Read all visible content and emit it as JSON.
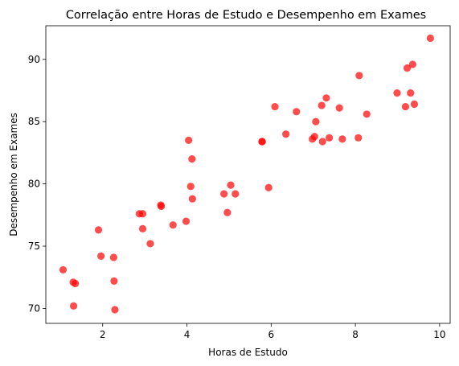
{
  "chart_data": {
    "type": "scatter",
    "title": "Correlação entre Horas de Estudo e Desempenho em Exames",
    "xlabel": "Horas de Estudo",
    "ylabel": "Desempenho em Exames",
    "xlim": [
      0.65,
      10.25
    ],
    "ylim": [
      68.8,
      92.7
    ],
    "xticks": [
      2,
      4,
      6,
      8,
      10
    ],
    "yticks": [
      70,
      75,
      80,
      85,
      90
    ],
    "grid": false,
    "marker_color": "#ff0000",
    "series": [
      {
        "points": [
          [
            1.06,
            73.1
          ],
          [
            1.3,
            72.1
          ],
          [
            1.35,
            72.0
          ],
          [
            1.31,
            70.2
          ],
          [
            1.9,
            76.3
          ],
          [
            1.96,
            74.2
          ],
          [
            2.26,
            74.1
          ],
          [
            2.27,
            72.2
          ],
          [
            2.29,
            69.9
          ],
          [
            2.87,
            77.6
          ],
          [
            2.95,
            77.6
          ],
          [
            2.95,
            76.4
          ],
          [
            3.13,
            75.2
          ],
          [
            3.38,
            78.3
          ],
          [
            3.39,
            78.2
          ],
          [
            3.67,
            76.7
          ],
          [
            3.98,
            77.0
          ],
          [
            4.04,
            83.5
          ],
          [
            4.09,
            79.8
          ],
          [
            4.12,
            82.0
          ],
          [
            4.13,
            78.8
          ],
          [
            4.88,
            79.2
          ],
          [
            4.96,
            77.7
          ],
          [
            5.04,
            79.9
          ],
          [
            5.15,
            79.2
          ],
          [
            5.78,
            83.4
          ],
          [
            5.79,
            83.4
          ],
          [
            5.94,
            79.7
          ],
          [
            6.09,
            86.2
          ],
          [
            6.35,
            84.0
          ],
          [
            6.6,
            85.8
          ],
          [
            6.98,
            83.6
          ],
          [
            7.03,
            83.8
          ],
          [
            7.06,
            85.0
          ],
          [
            7.2,
            86.3
          ],
          [
            7.22,
            83.4
          ],
          [
            7.31,
            86.9
          ],
          [
            7.38,
            83.7
          ],
          [
            7.62,
            86.1
          ],
          [
            7.69,
            83.6
          ],
          [
            8.07,
            83.7
          ],
          [
            8.09,
            88.7
          ],
          [
            8.27,
            85.6
          ],
          [
            8.99,
            87.3
          ],
          [
            9.19,
            86.2
          ],
          [
            9.23,
            89.3
          ],
          [
            9.31,
            87.3
          ],
          [
            9.36,
            89.6
          ],
          [
            9.4,
            86.4
          ],
          [
            9.78,
            91.7
          ]
        ]
      }
    ]
  }
}
